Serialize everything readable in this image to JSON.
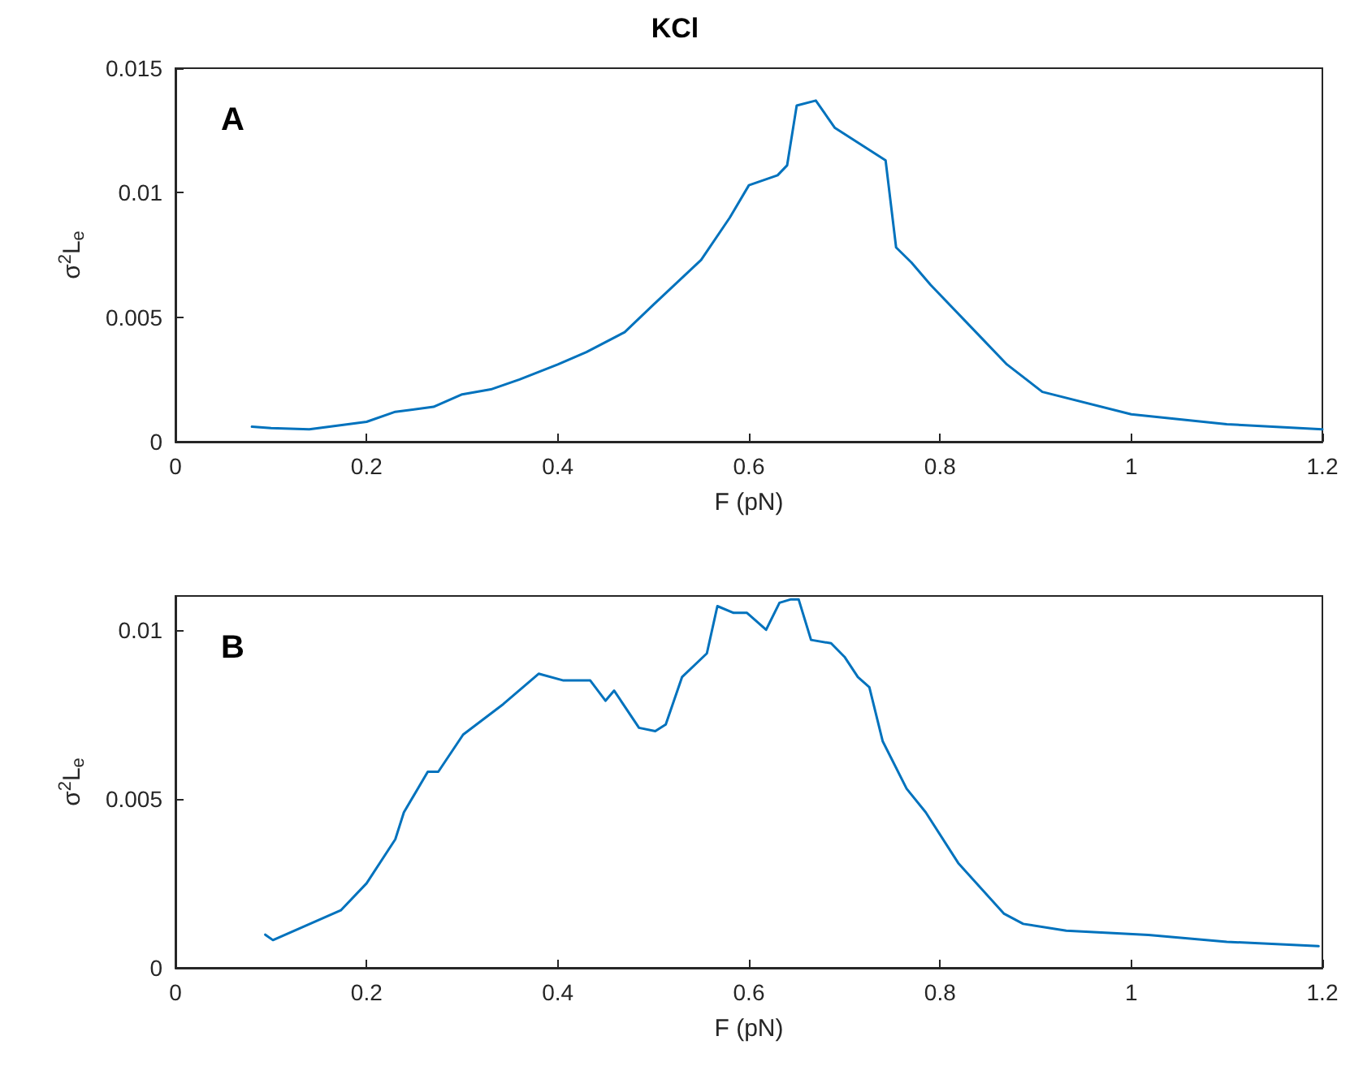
{
  "chart_data": [
    {
      "type": "line",
      "title": "KCl",
      "xlabel": "F (pN)",
      "ylabel": "σ$^{2}$L$_{e}$",
      "annotations": [
        "A"
      ],
      "series": [
        {
          "color": "#0072bd",
          "x": [
            0.08,
            0.1,
            0.14,
            0.2,
            0.23,
            0.27,
            0.3,
            0.33,
            0.36,
            0.4,
            0.43,
            0.47,
            0.5,
            0.55,
            0.58,
            0.6,
            0.63,
            0.64,
            0.65,
            0.67,
            0.69,
            0.743,
            0.754,
            0.77,
            0.79,
            0.84,
            0.87,
            0.907,
            1.0,
            1.1,
            1.2
          ],
          "values": [
            0.0006,
            0.00055,
            0.0005,
            0.0008,
            0.0012,
            0.0014,
            0.0019,
            0.0021,
            0.0025,
            0.0031,
            0.0036,
            0.0044,
            0.0055,
            0.0073,
            0.009,
            0.0103,
            0.0107,
            0.0111,
            0.0135,
            0.0137,
            0.0126,
            0.0113,
            0.0078,
            0.0072,
            0.0063,
            0.0043,
            0.0031,
            0.002,
            0.0011,
            0.0007,
            0.0005
          ]
        }
      ],
      "xlim": [
        0,
        1.2
      ],
      "xticks": [
        0,
        0.2,
        0.4,
        0.6,
        0.8,
        1,
        1.2
      ],
      "ylim": [
        0,
        0.015
      ],
      "yticks": [
        0,
        0.005,
        0.01,
        0.015
      ],
      "grid": false,
      "marker": "none",
      "line_style": "solid"
    },
    {
      "type": "line",
      "xlabel": "F (pN)",
      "ylabel": "σ$^{2}$L$_{e}$",
      "annotations": [
        "B"
      ],
      "series": [
        {
          "color": "#0072bd",
          "x": [
            0.094,
            0.102,
            0.173,
            0.2,
            0.23,
            0.239,
            0.264,
            0.275,
            0.301,
            0.343,
            0.38,
            0.406,
            0.434,
            0.45,
            0.459,
            0.485,
            0.502,
            0.513,
            0.53,
            0.556,
            0.567,
            0.584,
            0.598,
            0.618,
            0.632,
            0.644,
            0.652,
            0.665,
            0.686,
            0.7,
            0.714,
            0.726,
            0.74,
            0.765,
            0.785,
            0.819,
            0.867,
            0.887,
            0.932,
            1.018,
            1.1,
            1.196
          ],
          "values": [
            0.00098,
            0.00082,
            0.0017,
            0.0025,
            0.0038,
            0.0046,
            0.0058,
            0.0058,
            0.0069,
            0.0078,
            0.0087,
            0.0085,
            0.0085,
            0.0079,
            0.0082,
            0.0071,
            0.007,
            0.0072,
            0.0086,
            0.0093,
            0.0107,
            0.0105,
            0.0105,
            0.01,
            0.0108,
            0.0109,
            0.0109,
            0.0097,
            0.0096,
            0.0092,
            0.0086,
            0.0083,
            0.0067,
            0.0053,
            0.0046,
            0.0031,
            0.0016,
            0.0013,
            0.0011,
            0.00097,
            0.00077,
            0.00064
          ]
        }
      ],
      "xlim": [
        0,
        1.2
      ],
      "xticks": [
        0,
        0.2,
        0.4,
        0.6,
        0.8,
        1,
        1.2
      ],
      "ylim": [
        0,
        0.011
      ],
      "yticks": [
        0,
        0.005,
        0.01
      ],
      "grid": false,
      "marker": "none",
      "line_style": "solid"
    }
  ]
}
